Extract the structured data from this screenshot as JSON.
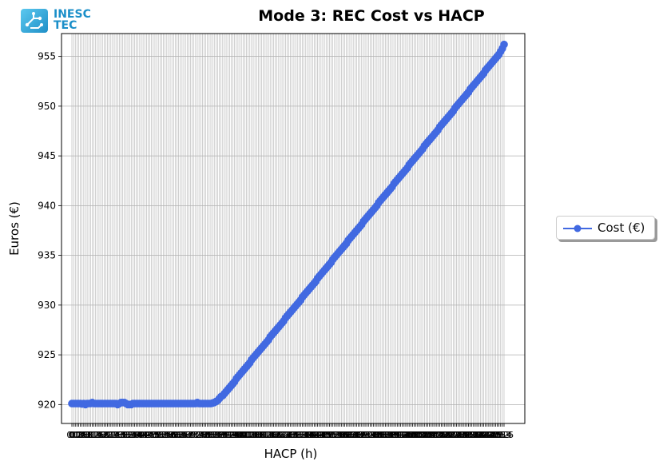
{
  "logo": {
    "line1": "INESC",
    "line2": "TEC"
  },
  "colors": {
    "series": "#4169e1",
    "grid": "#b0b0b0"
  },
  "chart_data": {
    "type": "line",
    "title": "Mode 3: REC Cost vs HACP",
    "xlabel": "HACP (h)",
    "ylabel": "Euros (€)",
    "ylim": [
      918.1,
      957.3
    ],
    "yticks": [
      920,
      925,
      930,
      935,
      940,
      945,
      950,
      955
    ],
    "grid": true,
    "legend_position": "outside-right",
    "x_start": 0,
    "x_step": 0.1,
    "series": [
      {
        "name": "Cost (€)",
        "marker": "circle",
        "values": [
          920.1,
          920.1,
          920.1,
          920.1,
          920.1,
          920.1,
          920.05,
          920.1,
          920,
          920.1,
          920.1,
          920.1,
          920.2,
          920.1,
          920.1,
          920.1,
          920.1,
          920.1,
          920.1,
          920.1,
          920.1,
          920.1,
          920.1,
          920.1,
          920.1,
          920.1,
          920.1,
          920,
          920.1,
          920.2,
          920.2,
          920.2,
          920.1,
          920,
          920,
          920,
          920.1,
          920.1,
          920.1,
          920.1,
          920.1,
          920.1,
          920.1,
          920.1,
          920.1,
          920.1,
          920.1,
          920.1,
          920.1,
          920.1,
          920.1,
          920.1,
          920.1,
          920.1,
          920.1,
          920.1,
          920.1,
          920.1,
          920.1,
          920.1,
          920.1,
          920.1,
          920.1,
          920.1,
          920.1,
          920.1,
          920.1,
          920.1,
          920.1,
          920.1,
          920.1,
          920.1,
          920.1,
          920.1,
          920.2,
          920.1,
          920.1,
          920.1,
          920.1,
          920.1,
          920.1,
          920.1,
          920.1,
          920.15,
          920.2,
          920.3,
          920.4,
          920.6,
          920.8,
          920.9,
          921.1,
          921.3,
          921.5,
          921.7,
          921.9,
          922.1,
          922.3,
          922.6,
          922.8,
          923.0,
          923.2,
          923.4,
          923.6,
          923.8,
          924.0,
          924.2,
          924.5,
          924.7,
          924.9,
          925.1,
          925.3,
          925.5,
          925.7,
          925.9,
          926.1,
          926.3,
          926.5,
          926.8,
          927.0,
          927.2,
          927.4,
          927.6,
          927.8,
          928.0,
          928.2,
          928.4,
          928.7,
          928.9,
          929.1,
          929.3,
          929.5,
          929.7,
          929.9,
          930.1,
          930.3,
          930.5,
          930.8,
          931.0,
          931.2,
          931.4,
          931.6,
          931.8,
          932.0,
          932.2,
          932.4,
          932.7,
          932.9,
          933.1,
          933.3,
          933.5,
          933.7,
          933.9,
          934.1,
          934.3,
          934.6,
          934.8,
          935.0,
          935.2,
          935.4,
          935.6,
          935.8,
          936.0,
          936.2,
          936.5,
          936.7,
          936.9,
          937.1,
          937.3,
          937.5,
          937.7,
          937.9,
          938.1,
          938.4,
          938.6,
          938.8,
          939.0,
          939.2,
          939.4,
          939.6,
          939.8,
          940.0,
          940.3,
          940.5,
          940.7,
          940.9,
          941.1,
          941.3,
          941.5,
          941.7,
          941.9,
          942.2,
          942.4,
          942.6,
          942.8,
          943.0,
          943.2,
          943.4,
          943.6,
          943.8,
          944.1,
          944.3,
          944.5,
          944.7,
          944.9,
          945.1,
          945.3,
          945.5,
          945.7,
          946.0,
          946.2,
          946.4,
          946.6,
          946.8,
          947.0,
          947.2,
          947.4,
          947.6,
          947.9,
          948.1,
          948.3,
          948.5,
          948.7,
          948.9,
          949.1,
          949.3,
          949.5,
          949.8,
          950.0,
          950.2,
          950.4,
          950.6,
          950.8,
          951.0,
          951.2,
          951.4,
          951.7,
          951.9,
          952.1,
          952.3,
          952.5,
          952.7,
          952.9,
          953.1,
          953.3,
          953.6,
          953.8,
          954.0,
          954.2,
          954.4,
          954.6,
          954.8,
          955.0,
          955.2,
          955.5,
          955.8,
          956.2
        ]
      }
    ]
  }
}
